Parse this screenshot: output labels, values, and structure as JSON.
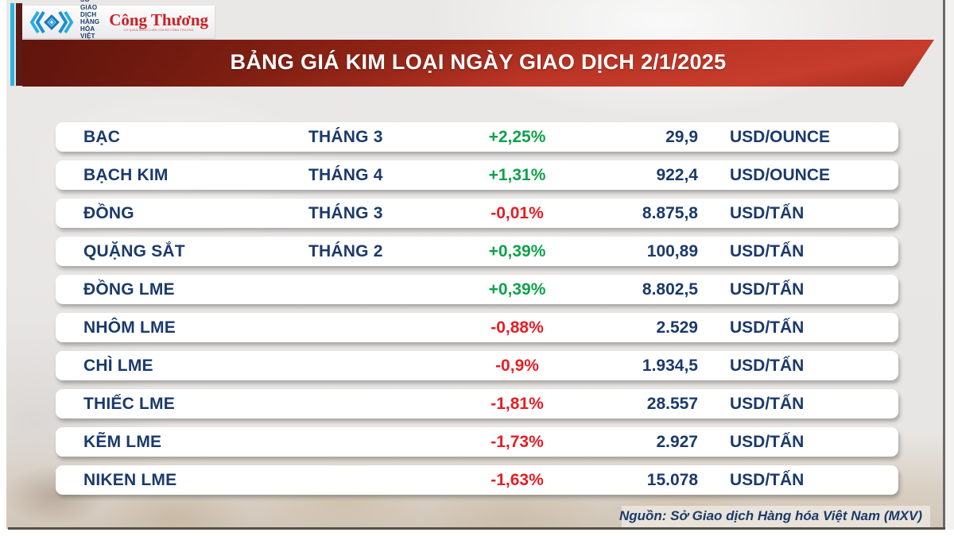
{
  "brand": {
    "mxv_name": "SỞ GIAO DỊCH\nHÀNG HÓA\nVIỆT NAM",
    "newspaper": "Công Thương",
    "newspaper_tagline": "CƠ QUAN NGÔN LUẬN CỦA BỘ CÔNG THƯƠNG"
  },
  "header": {
    "title": "BẢNG GIÁ KIM LOẠI NGÀY GIAO DỊCH 2/1/2025"
  },
  "table": {
    "rows": [
      {
        "name": "BẠC",
        "month": "THÁNG 3",
        "change": "+2,25%",
        "direction": "up",
        "price": "29,9",
        "unit": "USD/OUNCE"
      },
      {
        "name": "BẠCH KIM",
        "month": "THÁNG 4",
        "change": "+1,31%",
        "direction": "up",
        "price": "922,4",
        "unit": "USD/OUNCE"
      },
      {
        "name": "ĐỒNG",
        "month": "THÁNG 3",
        "change": "-0,01%",
        "direction": "down",
        "price": "8.875,8",
        "unit": "USD/TẤN"
      },
      {
        "name": "QUẶNG SẮT",
        "month": "THÁNG 2",
        "change": "+0,39%",
        "direction": "up",
        "price": "100,89",
        "unit": "USD/TẤN"
      },
      {
        "name": "ĐỒNG LME",
        "month": "",
        "change": "+0,39%",
        "direction": "up",
        "price": "8.802,5",
        "unit": "USD/TẤN"
      },
      {
        "name": "NHÔM LME",
        "month": "",
        "change": "-0,88%",
        "direction": "down",
        "price": "2.529",
        "unit": "USD/TẤN"
      },
      {
        "name": "CHÌ LME",
        "month": "",
        "change": "-0,9%",
        "direction": "down",
        "price": "1.934,5",
        "unit": "USD/TẤN"
      },
      {
        "name": "THIẾC LME",
        "month": "",
        "change": "-1,81%",
        "direction": "down",
        "price": "28.557",
        "unit": "USD/TẤN"
      },
      {
        "name": "KẼM LME",
        "month": "",
        "change": "-1,73%",
        "direction": "down",
        "price": "2.927",
        "unit": "USD/TẤN"
      },
      {
        "name": "NIKEN LME",
        "month": "",
        "change": "-1,63%",
        "direction": "down",
        "price": "15.078",
        "unit": "USD/TẤN"
      }
    ]
  },
  "footer": {
    "source": "Nguồn: Sở Giao dịch Hàng hóa Việt Nam (MXV)"
  },
  "colors": {
    "positive": "#0ea24a",
    "negative": "#e51e25",
    "navy": "#1b3a6b",
    "banner_dark": "#5c140c",
    "banner_red": "#c73d2c",
    "cyan_strip": "#2ab5e6",
    "maroon_strip": "#5d1a14"
  },
  "chart_data": {
    "type": "table",
    "title": "BẢNG GIÁ KIM LOẠI NGÀY GIAO DỊCH 2/1/2025",
    "rows": [
      {
        "commodity": "BẠC",
        "contract_month": "THÁNG 3",
        "change_pct": 2.25,
        "price": 29.9,
        "unit": "USD/OUNCE"
      },
      {
        "commodity": "BẠCH KIM",
        "contract_month": "THÁNG 4",
        "change_pct": 1.31,
        "price": 922.4,
        "unit": "USD/OUNCE"
      },
      {
        "commodity": "ĐỒNG",
        "contract_month": "THÁNG 3",
        "change_pct": -0.01,
        "price": 8875.8,
        "unit": "USD/TẤN"
      },
      {
        "commodity": "QUẶNG SẮT",
        "contract_month": "THÁNG 2",
        "change_pct": 0.39,
        "price": 100.89,
        "unit": "USD/TẤN"
      },
      {
        "commodity": "ĐỒNG LME",
        "contract_month": "",
        "change_pct": 0.39,
        "price": 8802.5,
        "unit": "USD/TẤN"
      },
      {
        "commodity": "NHÔM LME",
        "contract_month": "",
        "change_pct": -0.88,
        "price": 2529,
        "unit": "USD/TẤN"
      },
      {
        "commodity": "CHÌ LME",
        "contract_month": "",
        "change_pct": -0.9,
        "price": 1934.5,
        "unit": "USD/TẤN"
      },
      {
        "commodity": "THIẾC LME",
        "contract_month": "",
        "change_pct": -1.81,
        "price": 28557,
        "unit": "USD/TẤN"
      },
      {
        "commodity": "KẼM LME",
        "contract_month": "",
        "change_pct": -1.73,
        "price": 2927,
        "unit": "USD/TẤN"
      },
      {
        "commodity": "NIKEN LME",
        "contract_month": "",
        "change_pct": -1.63,
        "price": 15078,
        "unit": "USD/TẤN"
      }
    ]
  }
}
